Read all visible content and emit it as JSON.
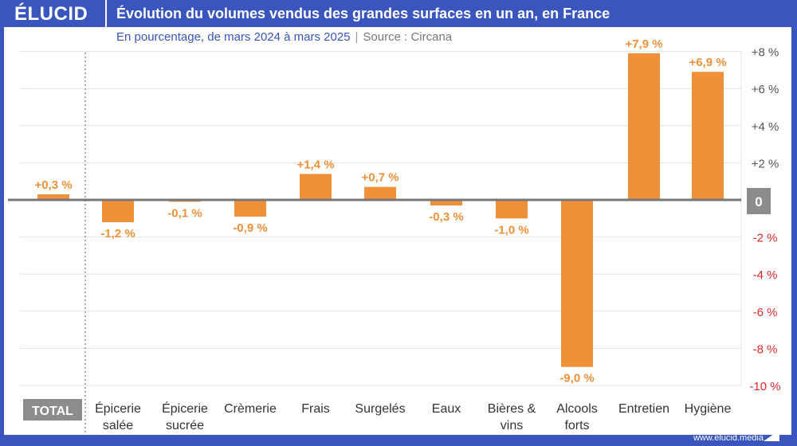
{
  "header": {
    "logo": "ÉLUCID",
    "title": "Évolution du volumes vendus des grandes surfaces en un an, en France"
  },
  "subtitle": "En pourcentage, de mars 2024 à mars 2025",
  "source": "Source : Circana",
  "footer": {
    "url": "www.elucid.media"
  },
  "colors": {
    "brand": "#3a55bd",
    "bar": "#f0913a",
    "negative_tick": "#e0262b",
    "positive_tick": "#555555",
    "zero_box": "#8c8c8c"
  },
  "chart_data": {
    "type": "bar",
    "categories": [
      "TOTAL",
      "Épicerie salée",
      "Épicerie sucrée",
      "Crèmerie",
      "Frais",
      "Surgelés",
      "Eaux",
      "Bières & vins",
      "Alcools forts",
      "Entretien",
      "Hygiène"
    ],
    "values": [
      0.3,
      -1.2,
      -0.1,
      -0.9,
      1.4,
      0.7,
      -0.3,
      -1.0,
      -9.0,
      7.9,
      6.9
    ],
    "data_labels": [
      "+0,3 %",
      "-1,2 %",
      "-0,1 %",
      "-0,9 %",
      "+1,4 %",
      "+0,7 %",
      "-0,3 %",
      "-1,0 %",
      "-9,0 %",
      "+7,9 %",
      "+6,9 %"
    ],
    "ylim": [
      -10,
      8
    ],
    "y_ticks": [
      8,
      6,
      4,
      2,
      0,
      -2,
      -4,
      -6,
      -8,
      -10
    ],
    "y_tick_labels": [
      "+8 %",
      "+6 %",
      "+4 %",
      "+2 %",
      "0",
      "-2 %",
      "-4 %",
      "-6 %",
      "-8 %",
      "-10 %"
    ],
    "y_axis_position": "right",
    "grid": true,
    "xlabel": "",
    "ylabel": ""
  }
}
